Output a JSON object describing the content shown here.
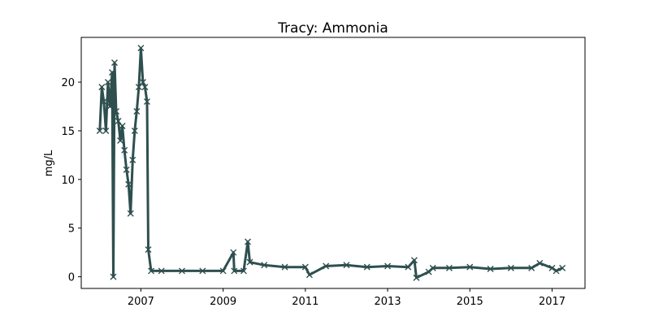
{
  "chart_data": {
    "type": "line",
    "title": "Tracy: Ammonia",
    "xlabel": "",
    "ylabel": "mg/L",
    "xlim": [
      2005.55,
      2017.8
    ],
    "ylim": [
      -1.2,
      24.6
    ],
    "x_ticks": [
      2007,
      2009,
      2011,
      2013,
      2015,
      2017
    ],
    "y_ticks": [
      0,
      5,
      10,
      15,
      20
    ],
    "marker": "x",
    "grid": false,
    "legend": "none",
    "colors": {
      "series": "#2f4f4f",
      "axes": "#000000",
      "background": "#ffffff"
    },
    "series": [
      {
        "x": [
          2006.0,
          2006.05,
          2006.1,
          2006.15,
          2006.2,
          2006.25,
          2006.3,
          2006.33,
          2006.36,
          2006.4,
          2006.45,
          2006.5,
          2006.55,
          2006.6,
          2006.65,
          2006.7,
          2006.75,
          2006.8,
          2006.85,
          2006.9,
          2006.95,
          2007.0,
          2007.05,
          2007.1,
          2007.15,
          2007.18,
          2007.25,
          2007.5,
          2008.0,
          2008.5,
          2009.0,
          2009.25,
          2009.27,
          2009.5,
          2009.6,
          2009.65,
          2010.0,
          2010.5,
          2011.0,
          2011.1,
          2011.5,
          2012.0,
          2012.5,
          2013.0,
          2013.5,
          2013.65,
          2013.7,
          2014.0,
          2014.1,
          2014.5,
          2015.0,
          2015.5,
          2016.0,
          2016.5,
          2016.7,
          2017.0,
          2017.1,
          2017.25
        ],
        "y": [
          15.0,
          19.5,
          18.0,
          15.0,
          20.0,
          17.5,
          21.0,
          0.0,
          22.0,
          17.0,
          16.0,
          14.0,
          15.5,
          13.0,
          11.0,
          9.5,
          6.5,
          12.0,
          15.0,
          17.0,
          19.5,
          23.5,
          20.0,
          19.5,
          18.0,
          2.8,
          0.6,
          0.6,
          0.6,
          0.6,
          0.6,
          2.5,
          0.6,
          0.6,
          3.6,
          1.5,
          1.2,
          1.0,
          1.0,
          0.2,
          1.1,
          1.2,
          1.0,
          1.1,
          1.0,
          1.7,
          -0.1,
          0.5,
          0.9,
          0.9,
          1.0,
          0.8,
          0.9,
          0.9,
          1.4,
          0.9,
          0.6,
          0.9
        ]
      }
    ]
  }
}
